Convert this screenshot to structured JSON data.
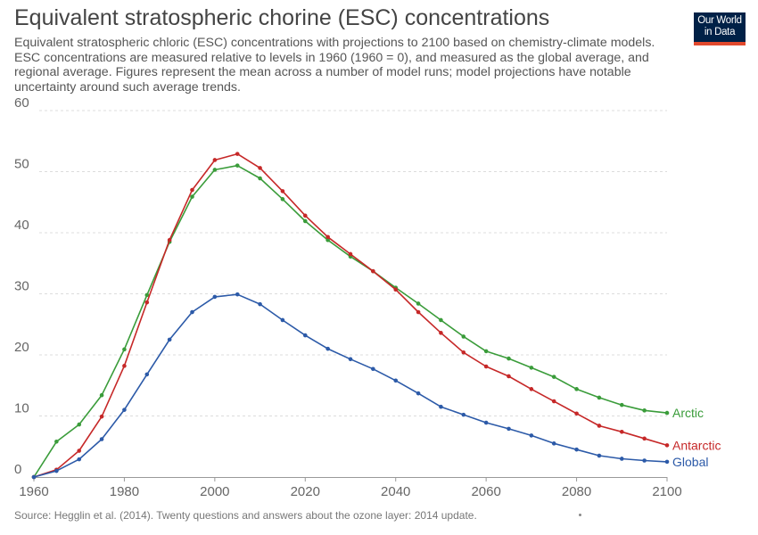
{
  "chart": {
    "title": "Equivalent stratospheric chorine (ESC) concentrations",
    "subtitle": "Equivalent stratospheric chloric (ESC) concentrations with projections to 2100 based on chemistry-climate models. ESC concentrations are measured relative to levels in 1960 (1960 = 0), and measured as the global average, and regional average. Figures represent the mean across a number of model runs; model projections have notable uncertainty around such average trends.",
    "source": "Source: Hegglin et al. (2014). Twenty questions and answers about the ozone layer: 2014 update."
  },
  "logo": {
    "line1": "Our World",
    "line2": "in Data"
  },
  "chart_data": {
    "type": "line",
    "xlim": [
      1960,
      2100
    ],
    "ylim": [
      0,
      60
    ],
    "x_ticks": [
      "1960",
      "1980",
      "2000",
      "2020",
      "2040",
      "2060",
      "2080",
      "2100"
    ],
    "y_ticks": [
      "0",
      "10",
      "20",
      "30",
      "40",
      "50",
      "60"
    ],
    "grid": true,
    "legend": "inline-right",
    "x": [
      1960,
      1965,
      1970,
      1975,
      1980,
      1985,
      1990,
      1995,
      2000,
      2005,
      2010,
      2015,
      2020,
      2025,
      2030,
      2035,
      2040,
      2045,
      2050,
      2055,
      2060,
      2065,
      2070,
      2075,
      2080,
      2085,
      2090,
      2095,
      2100
    ],
    "series": [
      {
        "name": "Arctic",
        "color": "#3a9c3a",
        "values": [
          0,
          5.8,
          8.6,
          13.4,
          20.9,
          29.8,
          38.5,
          45.9,
          50.3,
          51.0,
          48.9,
          45.5,
          41.9,
          38.8,
          36.1,
          33.7,
          31.0,
          28.4,
          25.7,
          23.0,
          20.6,
          19.4,
          17.9,
          16.4,
          14.4,
          13.0,
          11.8,
          10.9,
          10.5
        ]
      },
      {
        "name": "Antarctic",
        "color": "#c62828",
        "values": [
          0,
          1.2,
          4.3,
          9.9,
          18.2,
          28.6,
          38.8,
          47.0,
          51.9,
          52.9,
          50.6,
          46.8,
          42.8,
          39.3,
          36.5,
          33.7,
          30.7,
          27.0,
          23.6,
          20.4,
          18.1,
          16.5,
          14.4,
          12.4,
          10.4,
          8.4,
          7.4,
          6.3,
          5.2
        ]
      },
      {
        "name": "Global",
        "color": "#2c5aa8",
        "values": [
          0,
          1.0,
          2.9,
          6.2,
          11.0,
          16.8,
          22.5,
          27.0,
          29.5,
          29.9,
          28.3,
          25.7,
          23.2,
          21.0,
          19.3,
          17.7,
          15.8,
          13.7,
          11.5,
          10.2,
          8.9,
          7.9,
          6.8,
          5.5,
          4.5,
          3.5,
          3.0,
          2.7,
          2.5
        ]
      }
    ]
  }
}
